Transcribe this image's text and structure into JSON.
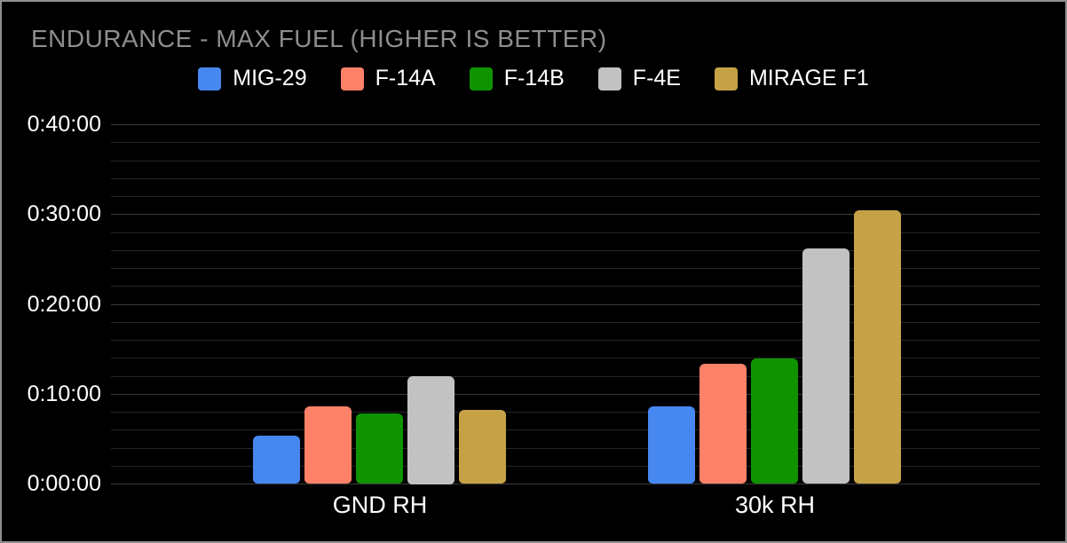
{
  "window": {
    "background": "#000000",
    "border_color": "#8f8f8f"
  },
  "chart_data": {
    "type": "bar",
    "title": "ENDURANCE - MAX FUEL (HIGHER IS BETTER)",
    "title_color": "#8e8e8e",
    "categories": [
      "GND RH",
      "30k RH"
    ],
    "series": [
      {
        "name": "MIG-29",
        "color": "#4787f0",
        "values_minutes": [
          5.3,
          8.6
        ],
        "values_time": [
          "0:05:18",
          "0:08:36"
        ]
      },
      {
        "name": "F-14A",
        "color": "#fc8169",
        "values_minutes": [
          8.6,
          13.3
        ],
        "values_time": [
          "0:08:36",
          "0:13:18"
        ]
      },
      {
        "name": "F-14B",
        "color": "#0f9400",
        "values_minutes": [
          7.8,
          13.9
        ],
        "values_time": [
          "0:07:48",
          "0:13:54"
        ]
      },
      {
        "name": "F-4E",
        "color": "#c2c2c2",
        "values_minutes": [
          12.0,
          26.2
        ],
        "values_time": [
          "0:12:00",
          "0:26:12"
        ]
      },
      {
        "name": "MIRAGE F1",
        "color": "#c5a245",
        "values_minutes": [
          8.2,
          30.4
        ],
        "values_time": [
          "0:08:12",
          "0:30:24"
        ]
      }
    ],
    "y_axis": {
      "ticks": [
        "0:00:00",
        "0:10:00",
        "0:20:00",
        "0:30:00",
        "0:40:00"
      ],
      "tick_minutes": [
        0,
        10,
        20,
        30,
        40
      ],
      "max_minutes": 40,
      "minor_step_minutes": 2
    },
    "ylim": [
      0,
      40
    ],
    "xlabel": "",
    "ylabel": "",
    "grid": true,
    "legend_position": "top",
    "text_color": "#ffffff",
    "grid_minor_color": "#262626",
    "grid_major_color": "#3a3a3a"
  }
}
